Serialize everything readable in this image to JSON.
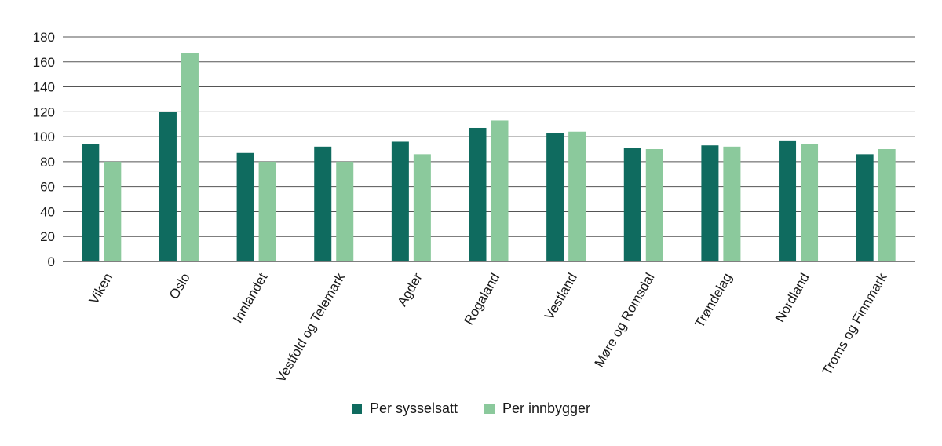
{
  "chart_data": {
    "type": "bar",
    "title": "",
    "xlabel": "",
    "ylabel": "",
    "ylim": [
      0,
      180
    ],
    "yticks": [
      0,
      20,
      40,
      60,
      80,
      100,
      120,
      140,
      160,
      180
    ],
    "grid": true,
    "legend_position": "bottom",
    "categories": [
      "Viken",
      "Oslo",
      "Innlandet",
      "Vestfold og Telemark",
      "Agder",
      "Rogaland",
      "Vestland",
      "Møre og Romsdal",
      "Trøndelag",
      "Nordland",
      "Troms og Finnmark"
    ],
    "series": [
      {
        "name": "Per sysselsatt",
        "color": "#0f6b5f",
        "values": [
          94,
          120,
          87,
          92,
          96,
          107,
          103,
          91,
          93,
          97,
          86
        ]
      },
      {
        "name": "Per innbygger",
        "color": "#8bc99c",
        "values": [
          80,
          167,
          80,
          80,
          86,
          113,
          104,
          90,
          92,
          94,
          90
        ]
      }
    ]
  }
}
